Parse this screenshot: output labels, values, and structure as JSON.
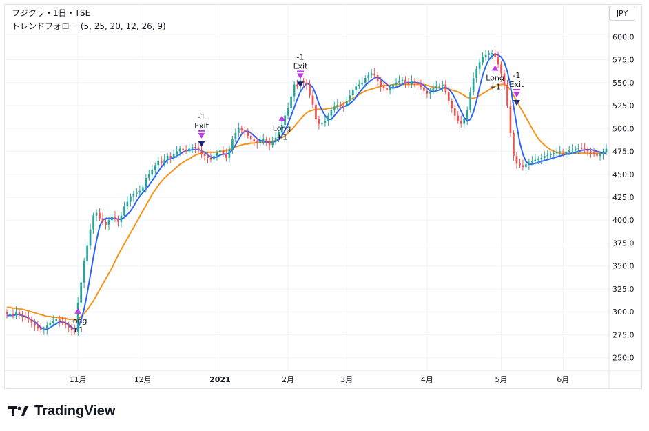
{
  "header": {
    "symbol_title": "フジクラ・1日・TSE",
    "indicator_title": "トレンドフォロー (5, 25, 20, 12, 26, 9)",
    "currency_button": "JPY"
  },
  "branding": {
    "name": "TradingView"
  },
  "colors": {
    "up": "#26a69a",
    "down": "#ef5350",
    "fast_ma": "#2962ff",
    "slow_ma": "#f7931a",
    "signal_long": "#c039e8",
    "exit_marker": "#1a237e",
    "grid": "#f0f3fa",
    "text": "#131722"
  },
  "chart_data": {
    "type": "candlestick",
    "ylim": [
      240,
      610
    ],
    "y_ticks": [
      250,
      275,
      300,
      325,
      350,
      375,
      400,
      425,
      450,
      475,
      500,
      525,
      550,
      575,
      600
    ],
    "y_tick_labels": [
      "250.0",
      "275.0",
      "300.0",
      "325.0",
      "350.0",
      "375.0",
      "400.0",
      "425.0",
      "450.0",
      "475.0",
      "500.0",
      "525.0",
      "550.0",
      "575.0",
      "600.0"
    ],
    "x_ticks": [
      {
        "label": "11月",
        "index": 23,
        "bold": false
      },
      {
        "label": "12月",
        "index": 44,
        "bold": false
      },
      {
        "label": "2021",
        "index": 69,
        "bold": true
      },
      {
        "label": "2月",
        "index": 91,
        "bold": false
      },
      {
        "label": "3月",
        "index": 110,
        "bold": false
      },
      {
        "label": "4月",
        "index": 136,
        "bold": false
      },
      {
        "label": "5月",
        "index": 160,
        "bold": false
      },
      {
        "label": "6月",
        "index": 180,
        "bold": false
      }
    ],
    "grid": true,
    "closes": [
      298,
      298,
      296,
      300,
      297,
      295,
      294,
      292,
      288,
      285,
      282,
      280,
      281,
      285,
      288,
      290,
      292,
      290,
      288,
      286,
      283,
      280,
      278,
      310,
      332,
      355,
      372,
      390,
      405,
      408,
      402,
      398,
      395,
      400,
      404,
      402,
      398,
      405,
      415,
      420,
      426,
      428,
      430,
      432,
      436,
      446,
      450,
      455,
      460,
      465,
      462,
      466,
      470,
      468,
      472,
      475,
      478,
      477,
      475,
      478,
      480,
      479,
      476,
      472,
      470,
      468,
      466,
      470,
      474,
      476,
      472,
      468,
      478,
      488,
      495,
      500,
      498,
      496,
      492,
      488,
      486,
      484,
      486,
      488,
      486,
      482,
      486,
      490,
      496,
      504,
      514,
      522,
      535,
      548,
      546,
      552,
      550,
      548,
      536,
      526,
      510,
      505,
      506,
      508,
      514,
      520,
      524,
      526,
      525,
      524,
      530,
      536,
      542,
      546,
      548,
      550,
      555,
      558,
      560,
      558,
      552,
      546,
      544,
      542,
      545,
      548,
      550,
      552,
      553,
      550,
      548,
      552,
      550,
      548,
      545,
      541,
      538,
      540,
      544,
      546,
      546,
      548,
      540,
      530,
      522,
      514,
      508,
      505,
      510,
      520,
      540,
      555,
      565,
      572,
      578,
      580,
      582,
      582,
      578,
      570,
      560,
      548,
      525,
      495,
      470,
      462,
      460,
      458,
      461,
      463,
      465,
      466,
      467,
      468,
      470,
      471,
      472,
      473,
      474,
      475,
      474,
      474,
      476,
      477,
      478,
      479,
      478,
      477,
      475,
      474,
      472,
      470,
      472,
      474,
      478
    ],
    "opens": [
      300,
      297,
      298,
      296,
      300,
      297,
      295,
      294,
      292,
      288,
      285,
      282,
      280,
      281,
      285,
      288,
      290,
      292,
      290,
      288,
      286,
      283,
      280,
      278,
      310,
      332,
      355,
      372,
      390,
      405,
      408,
      402,
      398,
      395,
      400,
      404,
      402,
      398,
      405,
      415,
      420,
      426,
      428,
      430,
      432,
      436,
      446,
      450,
      455,
      460,
      465,
      462,
      466,
      470,
      468,
      472,
      475,
      478,
      477,
      475,
      478,
      480,
      479,
      476,
      472,
      470,
      468,
      466,
      470,
      474,
      476,
      472,
      468,
      478,
      488,
      495,
      500,
      498,
      496,
      492,
      488,
      486,
      484,
      486,
      488,
      486,
      482,
      486,
      490,
      496,
      504,
      514,
      522,
      535,
      548,
      546,
      552,
      550,
      548,
      536,
      526,
      510,
      505,
      506,
      508,
      514,
      520,
      524,
      526,
      525,
      524,
      530,
      536,
      542,
      546,
      548,
      550,
      555,
      558,
      560,
      558,
      552,
      546,
      544,
      542,
      545,
      548,
      550,
      552,
      553,
      550,
      548,
      552,
      550,
      548,
      545,
      541,
      538,
      540,
      544,
      546,
      546,
      548,
      540,
      530,
      522,
      514,
      508,
      505,
      510,
      520,
      540,
      555,
      565,
      572,
      578,
      580,
      582,
      582,
      578,
      570,
      560,
      548,
      525,
      495,
      470,
      462,
      460,
      458,
      461,
      463,
      465,
      466,
      467,
      468,
      470,
      471,
      472,
      473,
      474,
      475,
      474,
      474,
      476,
      477,
      478,
      479,
      478,
      477,
      475,
      474,
      472,
      470,
      472,
      474
    ],
    "fast_ma": [
      296,
      296,
      296,
      297,
      297,
      296,
      295,
      293,
      291,
      289,
      286,
      283,
      281,
      281,
      283,
      285,
      287,
      289,
      289,
      288,
      286,
      283,
      281,
      282,
      291,
      303,
      320,
      340,
      360,
      378,
      393,
      400,
      402,
      402,
      402,
      402,
      401,
      401,
      403,
      406,
      410,
      415,
      421,
      426,
      430,
      434,
      438,
      443,
      448,
      453,
      458,
      462,
      466,
      467,
      468,
      470,
      472,
      474,
      476,
      476,
      477,
      477,
      477,
      476,
      474,
      471,
      469,
      468,
      469,
      471,
      472,
      472,
      473,
      477,
      482,
      488,
      494,
      497,
      497,
      495,
      492,
      489,
      487,
      486,
      485,
      485,
      485,
      486,
      488,
      492,
      498,
      505,
      514,
      523,
      532,
      540,
      545,
      549,
      548,
      545,
      537,
      527,
      520,
      514,
      510,
      510,
      514,
      518,
      522,
      524,
      525,
      527,
      530,
      534,
      539,
      543,
      547,
      550,
      553,
      555,
      556,
      554,
      551,
      548,
      545,
      544,
      545,
      546,
      548,
      550,
      550,
      550,
      550,
      550,
      549,
      547,
      544,
      541,
      540,
      541,
      542,
      544,
      545,
      543,
      539,
      533,
      526,
      519,
      512,
      508,
      510,
      518,
      530,
      545,
      558,
      568,
      575,
      579,
      581,
      580,
      578,
      572,
      562,
      546,
      524,
      504,
      485,
      472,
      464,
      461,
      461,
      462,
      463,
      464,
      465,
      466,
      467,
      468,
      469,
      470,
      471,
      472,
      472,
      473,
      474,
      475,
      476,
      477,
      477,
      477,
      476,
      475,
      474,
      473,
      473
    ],
    "slow_ma": [
      305,
      305,
      304,
      304,
      303,
      303,
      302,
      301,
      300,
      299,
      298,
      297,
      296,
      295,
      295,
      294,
      294,
      294,
      293,
      293,
      292,
      292,
      291,
      292,
      295,
      298,
      302,
      307,
      312,
      318,
      324,
      330,
      336,
      342,
      348,
      355,
      362,
      368,
      374,
      380,
      386,
      392,
      398,
      404,
      410,
      416,
      422,
      428,
      433,
      438,
      442,
      446,
      449,
      452,
      455,
      458,
      461,
      463,
      465,
      467,
      469,
      471,
      472,
      473,
      474,
      474,
      474,
      474,
      474,
      475,
      475,
      476,
      477,
      478,
      480,
      481,
      482,
      483,
      483,
      484,
      484,
      485,
      485,
      485,
      486,
      486,
      486,
      487,
      488,
      490,
      492,
      495,
      498,
      502,
      506,
      510,
      514,
      517,
      519,
      520,
      521,
      521,
      521,
      521,
      522,
      522,
      523,
      524,
      525,
      527,
      529,
      531,
      533,
      535,
      537,
      539,
      541,
      542,
      543,
      544,
      545,
      546,
      547,
      547,
      547,
      548,
      548,
      548,
      548,
      548,
      548,
      548,
      548,
      548,
      548,
      548,
      547,
      546,
      545,
      545,
      544,
      544,
      544,
      543,
      542,
      541,
      540,
      538,
      536,
      534,
      533,
      533,
      534,
      536,
      538,
      540,
      542,
      544,
      546,
      547,
      548,
      548,
      546,
      542,
      536,
      530,
      524,
      518,
      512,
      506,
      500,
      494,
      489,
      485,
      482,
      479,
      477,
      475,
      474,
      473,
      473,
      473,
      473,
      473,
      473,
      473,
      473,
      473,
      473,
      473,
      473,
      473,
      473,
      473,
      473
    ],
    "signals": [
      {
        "type": "long",
        "index": 23,
        "price": 310,
        "label_top": "Long",
        "label_bottom": "+1"
      },
      {
        "type": "exit",
        "index": 63,
        "price": 480,
        "label_top": "-1",
        "label_bottom": "Exit"
      },
      {
        "type": "long",
        "index": 89,
        "price": 520,
        "label_top": "Long",
        "label_bottom": "+1"
      },
      {
        "type": "exit",
        "index": 95,
        "price": 545,
        "label_top": "-1",
        "label_bottom": "Exit"
      },
      {
        "type": "long",
        "index": 158,
        "price": 575,
        "label_top": "Long",
        "label_bottom": "+1"
      },
      {
        "type": "exit",
        "index": 165,
        "price": 525,
        "label_top": "-1",
        "label_bottom": "Exit"
      }
    ]
  }
}
